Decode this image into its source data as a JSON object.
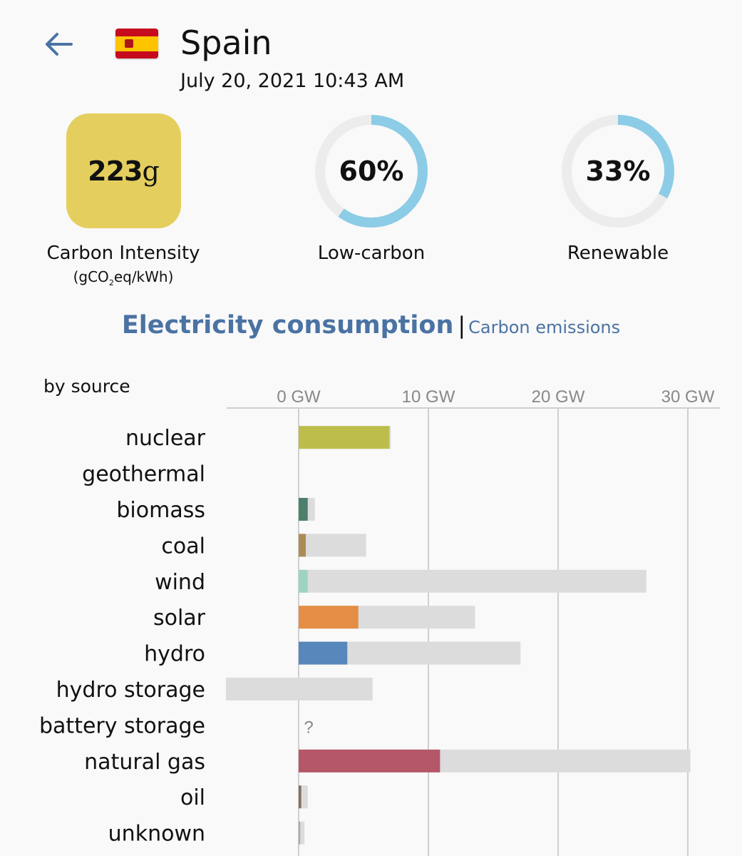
{
  "header": {
    "back_icon": "arrow-left-icon",
    "flag_icon": "spain-flag-icon",
    "country": "Spain",
    "datetime": "July 20, 2021 10:43 AM"
  },
  "stats": {
    "carbon_intensity": {
      "value": "223",
      "unit": "g",
      "label": "Carbon Intensity",
      "units_prefix": "(gCO",
      "units_sub": "2",
      "units_suffix": "eq/kWh)",
      "color": "#e4cf5e"
    },
    "low_carbon": {
      "percent_text": "60%",
      "percent": 60,
      "label": "Low-carbon",
      "color": "#8ccce6"
    },
    "renewable": {
      "percent_text": "33%",
      "percent": 33,
      "label": "Renewable",
      "color": "#8ccce6"
    }
  },
  "tabs": {
    "active": "Electricity consumption",
    "separator": "|",
    "inactive": "Carbon emissions"
  },
  "chart_data": {
    "type": "bar",
    "title": "by source",
    "x_unit": "GW",
    "xlim": [
      -5.6,
      32
    ],
    "ticks": [
      {
        "value": 0,
        "label": "0 GW"
      },
      {
        "value": 10,
        "label": "10 GW"
      },
      {
        "value": 20,
        "label": "20 GW"
      },
      {
        "value": 30,
        "label": "30 GW"
      }
    ],
    "categories": [
      "nuclear",
      "geothermal",
      "biomass",
      "coal",
      "wind",
      "solar",
      "hydro",
      "hydro storage",
      "battery storage",
      "natural gas",
      "oil",
      "unknown"
    ],
    "production": [
      7.0,
      0,
      0.7,
      0.55,
      0.7,
      4.6,
      3.75,
      0,
      null,
      10.9,
      0.2,
      0.12
    ],
    "capacity_min": [
      0,
      0,
      0,
      0,
      0,
      0,
      0,
      -5.6,
      null,
      0,
      0,
      0
    ],
    "capacity_max": [
      7.1,
      0,
      1.25,
      5.2,
      26.8,
      13.6,
      17.1,
      5.7,
      null,
      30.2,
      0.7,
      0.45
    ],
    "unknown_marker": "?",
    "colors": {
      "nuclear": "#bdbd4c",
      "geothermal": "#c0392b",
      "biomass": "#4d7f6b",
      "coal": "#ac8c55",
      "wind": "#9ed3c4",
      "solar": "#e38e44",
      "hydro": "#5787bb",
      "hydro storage": "#0b2e5a",
      "battery storage": "#b0b0b0",
      "natural gas": "#b55768",
      "oil": "#86705f",
      "unknown": "#a8a8a8",
      "capacity": "#dcdcdc",
      "grid": "#cfcfcf"
    }
  }
}
